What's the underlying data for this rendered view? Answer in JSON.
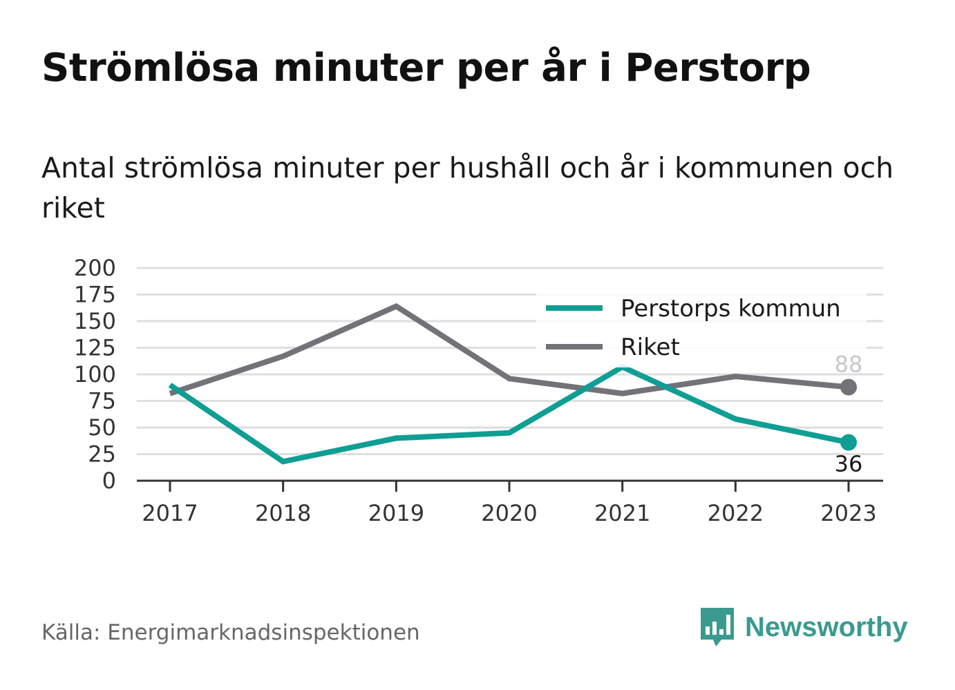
{
  "title": "Strömlösa minuter per år i Perstorp",
  "subtitle": "Antal strömlösa minuter per hushåll och år i kommunen och riket",
  "source": "Källa: Energimarknadsinspektionen",
  "brand": {
    "name": "Newsworthy",
    "icon": "bar-chart-speech-bubble-icon",
    "color": "#3b9a8f"
  },
  "chart_data": {
    "type": "line",
    "x": [
      "2017",
      "2018",
      "2019",
      "2020",
      "2021",
      "2022",
      "2023"
    ],
    "ylim": [
      0,
      200
    ],
    "yticks": [
      "0",
      "25",
      "50",
      "75",
      "100",
      "125",
      "150",
      "175",
      "200"
    ],
    "grid": true,
    "legend_position": "top-right",
    "series": [
      {
        "name": "Perstorps kommun",
        "color": "#0f9e93",
        "values": [
          90,
          18,
          40,
          45,
          107,
          58,
          36
        ],
        "end_label": "36"
      },
      {
        "name": "Riket",
        "color": "#737278",
        "values": [
          82,
          117,
          164,
          96,
          82,
          98,
          88
        ],
        "end_label": "88"
      }
    ]
  }
}
